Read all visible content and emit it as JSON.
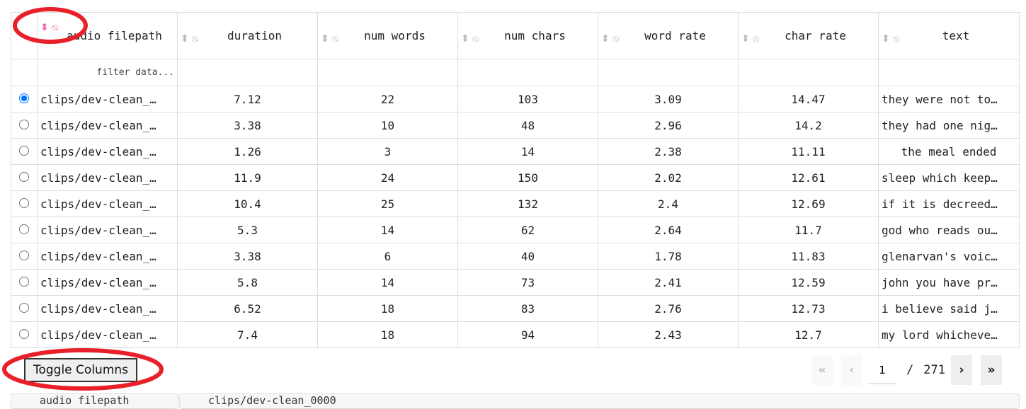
{
  "columns": [
    {
      "label": "audio filepath",
      "active": true
    },
    {
      "label": "duration"
    },
    {
      "label": "num words"
    },
    {
      "label": "num chars"
    },
    {
      "label": "word rate"
    },
    {
      "label": "char rate"
    },
    {
      "label": "text"
    }
  ],
  "filter_placeholder": "filter data...",
  "rows": [
    {
      "selected": true,
      "filepath": "clips/dev-clean_…",
      "duration": "7.12",
      "num_words": "22",
      "num_chars": "103",
      "word_rate": "3.09",
      "char_rate": "14.47",
      "text": "they were not to…"
    },
    {
      "filepath": "clips/dev-clean_…",
      "duration": "3.38",
      "num_words": "10",
      "num_chars": "48",
      "word_rate": "2.96",
      "char_rate": "14.2",
      "text": "they had one nig…"
    },
    {
      "filepath": "clips/dev-clean_…",
      "duration": "1.26",
      "num_words": "3",
      "num_chars": "14",
      "word_rate": "2.38",
      "char_rate": "11.11",
      "text": "the meal ended"
    },
    {
      "filepath": "clips/dev-clean_…",
      "duration": "11.9",
      "num_words": "24",
      "num_chars": "150",
      "word_rate": "2.02",
      "char_rate": "12.61",
      "text": "sleep which keep…"
    },
    {
      "filepath": "clips/dev-clean_…",
      "duration": "10.4",
      "num_words": "25",
      "num_chars": "132",
      "word_rate": "2.4",
      "char_rate": "12.69",
      "text": "if it is decreed…"
    },
    {
      "filepath": "clips/dev-clean_…",
      "duration": "5.3",
      "num_words": "14",
      "num_chars": "62",
      "word_rate": "2.64",
      "char_rate": "11.7",
      "text": "god who reads ou…"
    },
    {
      "filepath": "clips/dev-clean_…",
      "duration": "3.38",
      "num_words": "6",
      "num_chars": "40",
      "word_rate": "1.78",
      "char_rate": "11.83",
      "text": "glenarvan's voic…"
    },
    {
      "filepath": "clips/dev-clean_…",
      "duration": "5.8",
      "num_words": "14",
      "num_chars": "73",
      "word_rate": "2.41",
      "char_rate": "12.59",
      "text": "john you have pr…"
    },
    {
      "filepath": "clips/dev-clean_…",
      "duration": "6.52",
      "num_words": "18",
      "num_chars": "83",
      "word_rate": "2.76",
      "char_rate": "12.73",
      "text": "i believe said j…"
    },
    {
      "filepath": "clips/dev-clean_…",
      "duration": "7.4",
      "num_words": "18",
      "num_chars": "94",
      "word_rate": "2.43",
      "char_rate": "12.7",
      "text": "my lord whicheve…"
    }
  ],
  "toggle_columns_label": "Toggle Columns",
  "pagination": {
    "current_page": "1",
    "separator": "/",
    "total_pages": "271",
    "first": "«",
    "prev": "‹",
    "next": "›",
    "last": "»"
  },
  "bottom_strip": {
    "label": "audio filepath",
    "value": "clips/dev-clean_0000"
  },
  "colors": {
    "annotation": "#e8202a",
    "active_icon": "#f06aa8",
    "radio": "#1a73e8"
  }
}
